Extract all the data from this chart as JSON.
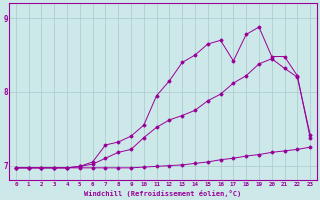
{
  "x": [
    0,
    1,
    2,
    3,
    4,
    5,
    6,
    7,
    8,
    9,
    10,
    11,
    12,
    13,
    14,
    15,
    16,
    17,
    18,
    19,
    20,
    21,
    22,
    23
  ],
  "line1": [
    6.97,
    6.97,
    6.97,
    6.97,
    6.97,
    6.97,
    6.97,
    6.97,
    6.97,
    6.97,
    6.98,
    6.99,
    7.0,
    7.01,
    7.03,
    7.05,
    7.08,
    7.1,
    7.13,
    7.15,
    7.18,
    7.2,
    7.22,
    7.25
  ],
  "line2": [
    6.97,
    6.97,
    6.97,
    6.97,
    6.97,
    6.99,
    7.02,
    7.1,
    7.18,
    7.22,
    7.38,
    7.52,
    7.62,
    7.68,
    7.75,
    7.88,
    7.97,
    8.12,
    8.22,
    8.38,
    8.45,
    8.32,
    8.2,
    7.42
  ],
  "line3": [
    6.97,
    6.97,
    6.97,
    6.97,
    6.97,
    6.99,
    7.05,
    7.28,
    7.32,
    7.4,
    7.55,
    7.95,
    8.15,
    8.4,
    8.5,
    8.65,
    8.7,
    8.42,
    8.78,
    8.88,
    8.48,
    8.48,
    8.22,
    7.38
  ],
  "color": "#990099",
  "bg_color": "#cce8e8",
  "grid_color": "#aac8cc",
  "xlabel": "Windchill (Refroidissement éolien,°C)",
  "ylim": [
    6.8,
    9.2
  ],
  "xlim": [
    -0.5,
    23.5
  ],
  "yticks": [
    7,
    8,
    9
  ],
  "xticks": [
    0,
    1,
    2,
    3,
    4,
    5,
    6,
    7,
    8,
    9,
    10,
    11,
    12,
    13,
    14,
    15,
    16,
    17,
    18,
    19,
    20,
    21,
    22,
    23
  ]
}
